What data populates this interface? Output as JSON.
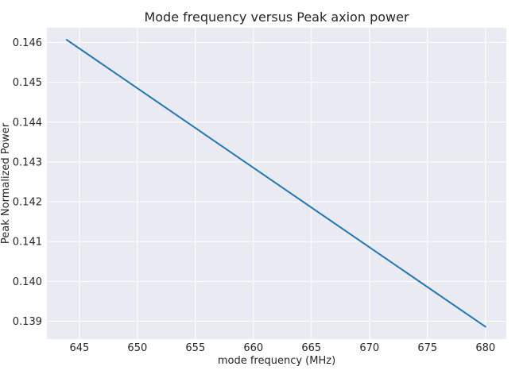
{
  "colors": {
    "background": "#ffffff",
    "plot_background": "#eaeaf2",
    "grid": "#ffffff",
    "text": "#262626",
    "series": "#1f77b4"
  },
  "chart_data": {
    "type": "line",
    "title": "Mode frequency versus Peak axion power",
    "xlabel": "mode frequency (MHz)",
    "ylabel": "Peak Normalized Power",
    "xlim": [
      642.2,
      681.8
    ],
    "ylim": [
      0.13855,
      0.14637
    ],
    "xticks": [
      645,
      650,
      655,
      660,
      665,
      670,
      675,
      680
    ],
    "xtick_labels": [
      "645",
      "650",
      "655",
      "660",
      "665",
      "670",
      "675",
      "680"
    ],
    "yticks": [
      0.139,
      0.14,
      0.141,
      0.142,
      0.143,
      0.144,
      0.145,
      0.146
    ],
    "ytick_labels": [
      "0.139",
      "0.140",
      "0.141",
      "0.142",
      "0.143",
      "0.144",
      "0.145",
      "0.146"
    ],
    "grid": true,
    "series": [
      {
        "x": [
          643.9,
          680.0
        ],
        "y": [
          0.14607,
          0.13886
        ]
      }
    ]
  }
}
